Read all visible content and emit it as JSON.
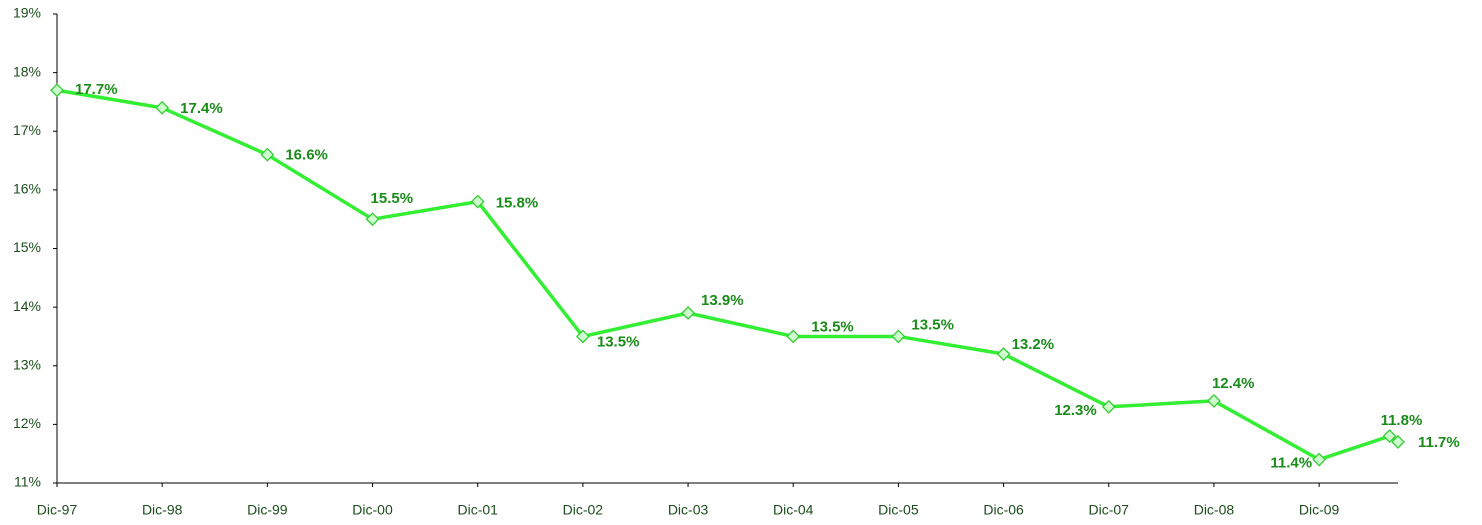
{
  "chart_data": {
    "type": "line",
    "x": [
      1997,
      1998,
      1999,
      2000,
      2001,
      2002,
      2003,
      2004,
      2005,
      2006,
      2007,
      2008,
      2009,
      2009.67,
      2009.75
    ],
    "series": [
      {
        "color": "#33ee33",
        "values": [
          17.7,
          17.4,
          16.6,
          15.5,
          15.8,
          13.5,
          13.9,
          13.5,
          13.5,
          13.2,
          12.3,
          12.4,
          11.4,
          11.8,
          11.7
        ],
        "value_labels": [
          "17.7%",
          "17.4%",
          "16.6%",
          "15.5%",
          "15.8%",
          "13.5%",
          "13.9%",
          "13.5%",
          "13.5%",
          "13.2%",
          "12.3%",
          "12.4%",
          "11.4%",
          "11.8%",
          "11.7%"
        ]
      }
    ],
    "xlim": [
      1997,
      2009.75
    ],
    "xticks": [
      {
        "value": 1997,
        "label": "Dic-97"
      },
      {
        "value": 1998,
        "label": "Dic-98"
      },
      {
        "value": 1999,
        "label": "Dic-99"
      },
      {
        "value": 2000,
        "label": "Dic-00"
      },
      {
        "value": 2001,
        "label": "Dic-01"
      },
      {
        "value": 2002,
        "label": "Dic-02"
      },
      {
        "value": 2003,
        "label": "Dic-03"
      },
      {
        "value": 2004,
        "label": "Dic-04"
      },
      {
        "value": 2005,
        "label": "Dic-05"
      },
      {
        "value": 2006,
        "label": "Dic-06"
      },
      {
        "value": 2007,
        "label": "Dic-07"
      },
      {
        "value": 2008,
        "label": "Dic-08"
      },
      {
        "value": 2009,
        "label": "Dic-09"
      }
    ],
    "ylim": [
      11,
      19
    ],
    "yticks": [
      {
        "value": 11,
        "label": "11%"
      },
      {
        "value": 12,
        "label": "12%"
      },
      {
        "value": 13,
        "label": "13%"
      },
      {
        "value": 14,
        "label": "14%"
      },
      {
        "value": 15,
        "label": "15%"
      },
      {
        "value": 16,
        "label": "16%"
      },
      {
        "value": 17,
        "label": "17%"
      },
      {
        "value": 18,
        "label": "18%"
      },
      {
        "value": 19,
        "label": "19%"
      }
    ],
    "grid": false
  }
}
